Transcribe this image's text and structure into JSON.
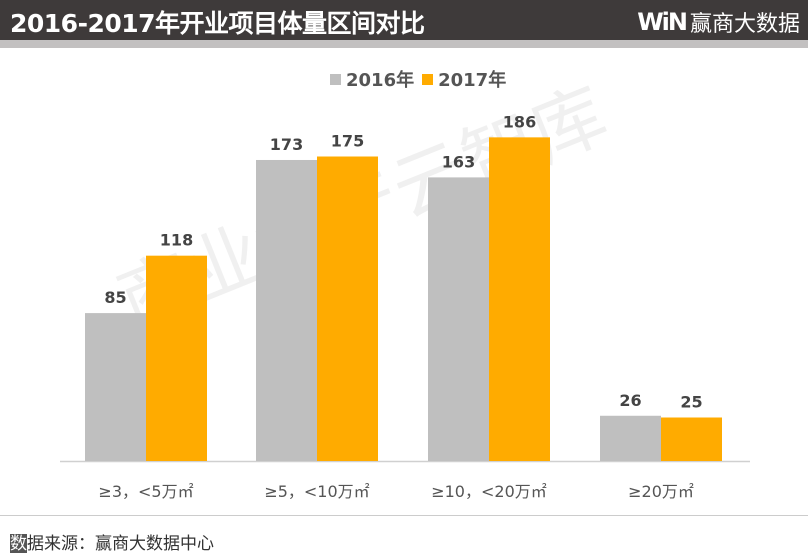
{
  "header": {
    "title": "2016-2017年开业项目体量区间对比",
    "logo_mark": "WiN",
    "logo_text": "赢商大数据"
  },
  "watermark": "商业地产云智库",
  "footer": {
    "first_char": "数",
    "rest": "据来源：赢商大数据中心"
  },
  "chart_data": {
    "type": "bar",
    "categories": [
      "≥3，<5万㎡",
      "≥5，<10万㎡",
      "≥10，<20万㎡",
      "≥20万㎡"
    ],
    "series": [
      {
        "name": "2016年",
        "values": [
          85,
          173,
          163,
          26
        ],
        "color": "#bfbfbf"
      },
      {
        "name": "2017年",
        "values": [
          118,
          175,
          186,
          25
        ],
        "color": "#ffab00"
      }
    ],
    "ylim": [
      0,
      200
    ],
    "grid": false,
    "legend_placement": "top-center",
    "data_labels": true
  }
}
